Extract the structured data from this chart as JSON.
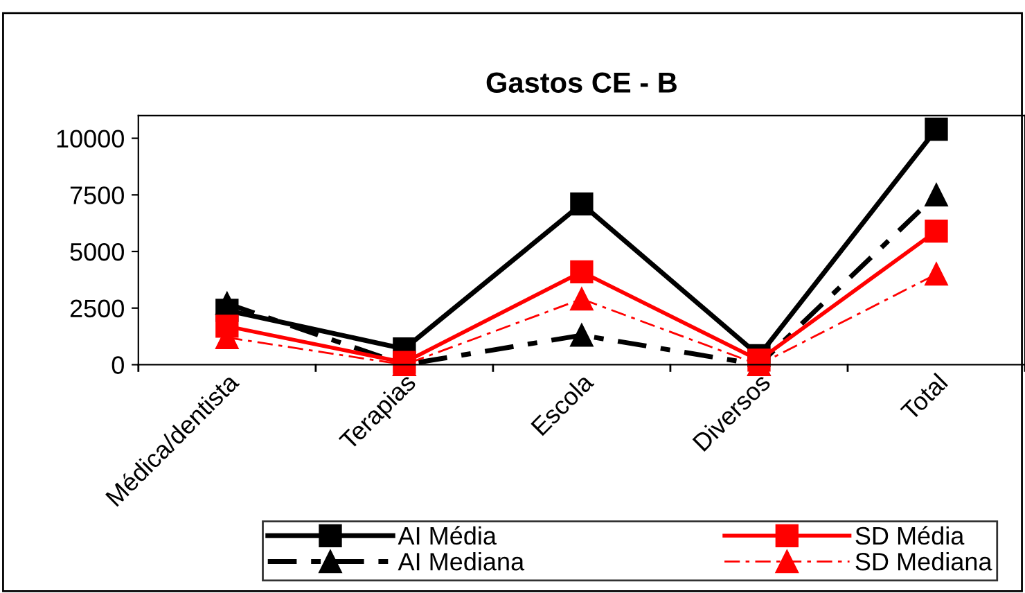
{
  "chart_data": {
    "type": "line",
    "title": "Gastos CE - B",
    "categories": [
      "Médica/dentista",
      "Terapias",
      "Escola",
      "Diversos",
      "Total"
    ],
    "series": [
      {
        "name": "AI Média",
        "color": "#000000",
        "values": [
          2400,
          700,
          7100,
          400,
          10400
        ],
        "marker": "square",
        "line_style": "solid"
      },
      {
        "name": "AI Mediana",
        "color": "#000000",
        "values": [
          2700,
          0,
          1300,
          0,
          7500
        ],
        "marker": "triangle",
        "line_style": "dashed"
      },
      {
        "name": "SD Média",
        "color": "#ff0000",
        "values": [
          1700,
          100,
          4100,
          200,
          5900
        ],
        "marker": "square",
        "line_style": "solid"
      },
      {
        "name": "SD Mediana",
        "color": "#ff0000",
        "values": [
          1200,
          0,
          2900,
          0,
          4000
        ],
        "marker": "triangle",
        "line_style": "dashed"
      }
    ],
    "ylim": [
      0,
      11000
    ],
    "yticks": [
      0,
      2500,
      5000,
      7500,
      10000
    ],
    "grid": false,
    "legend": "bottom"
  }
}
